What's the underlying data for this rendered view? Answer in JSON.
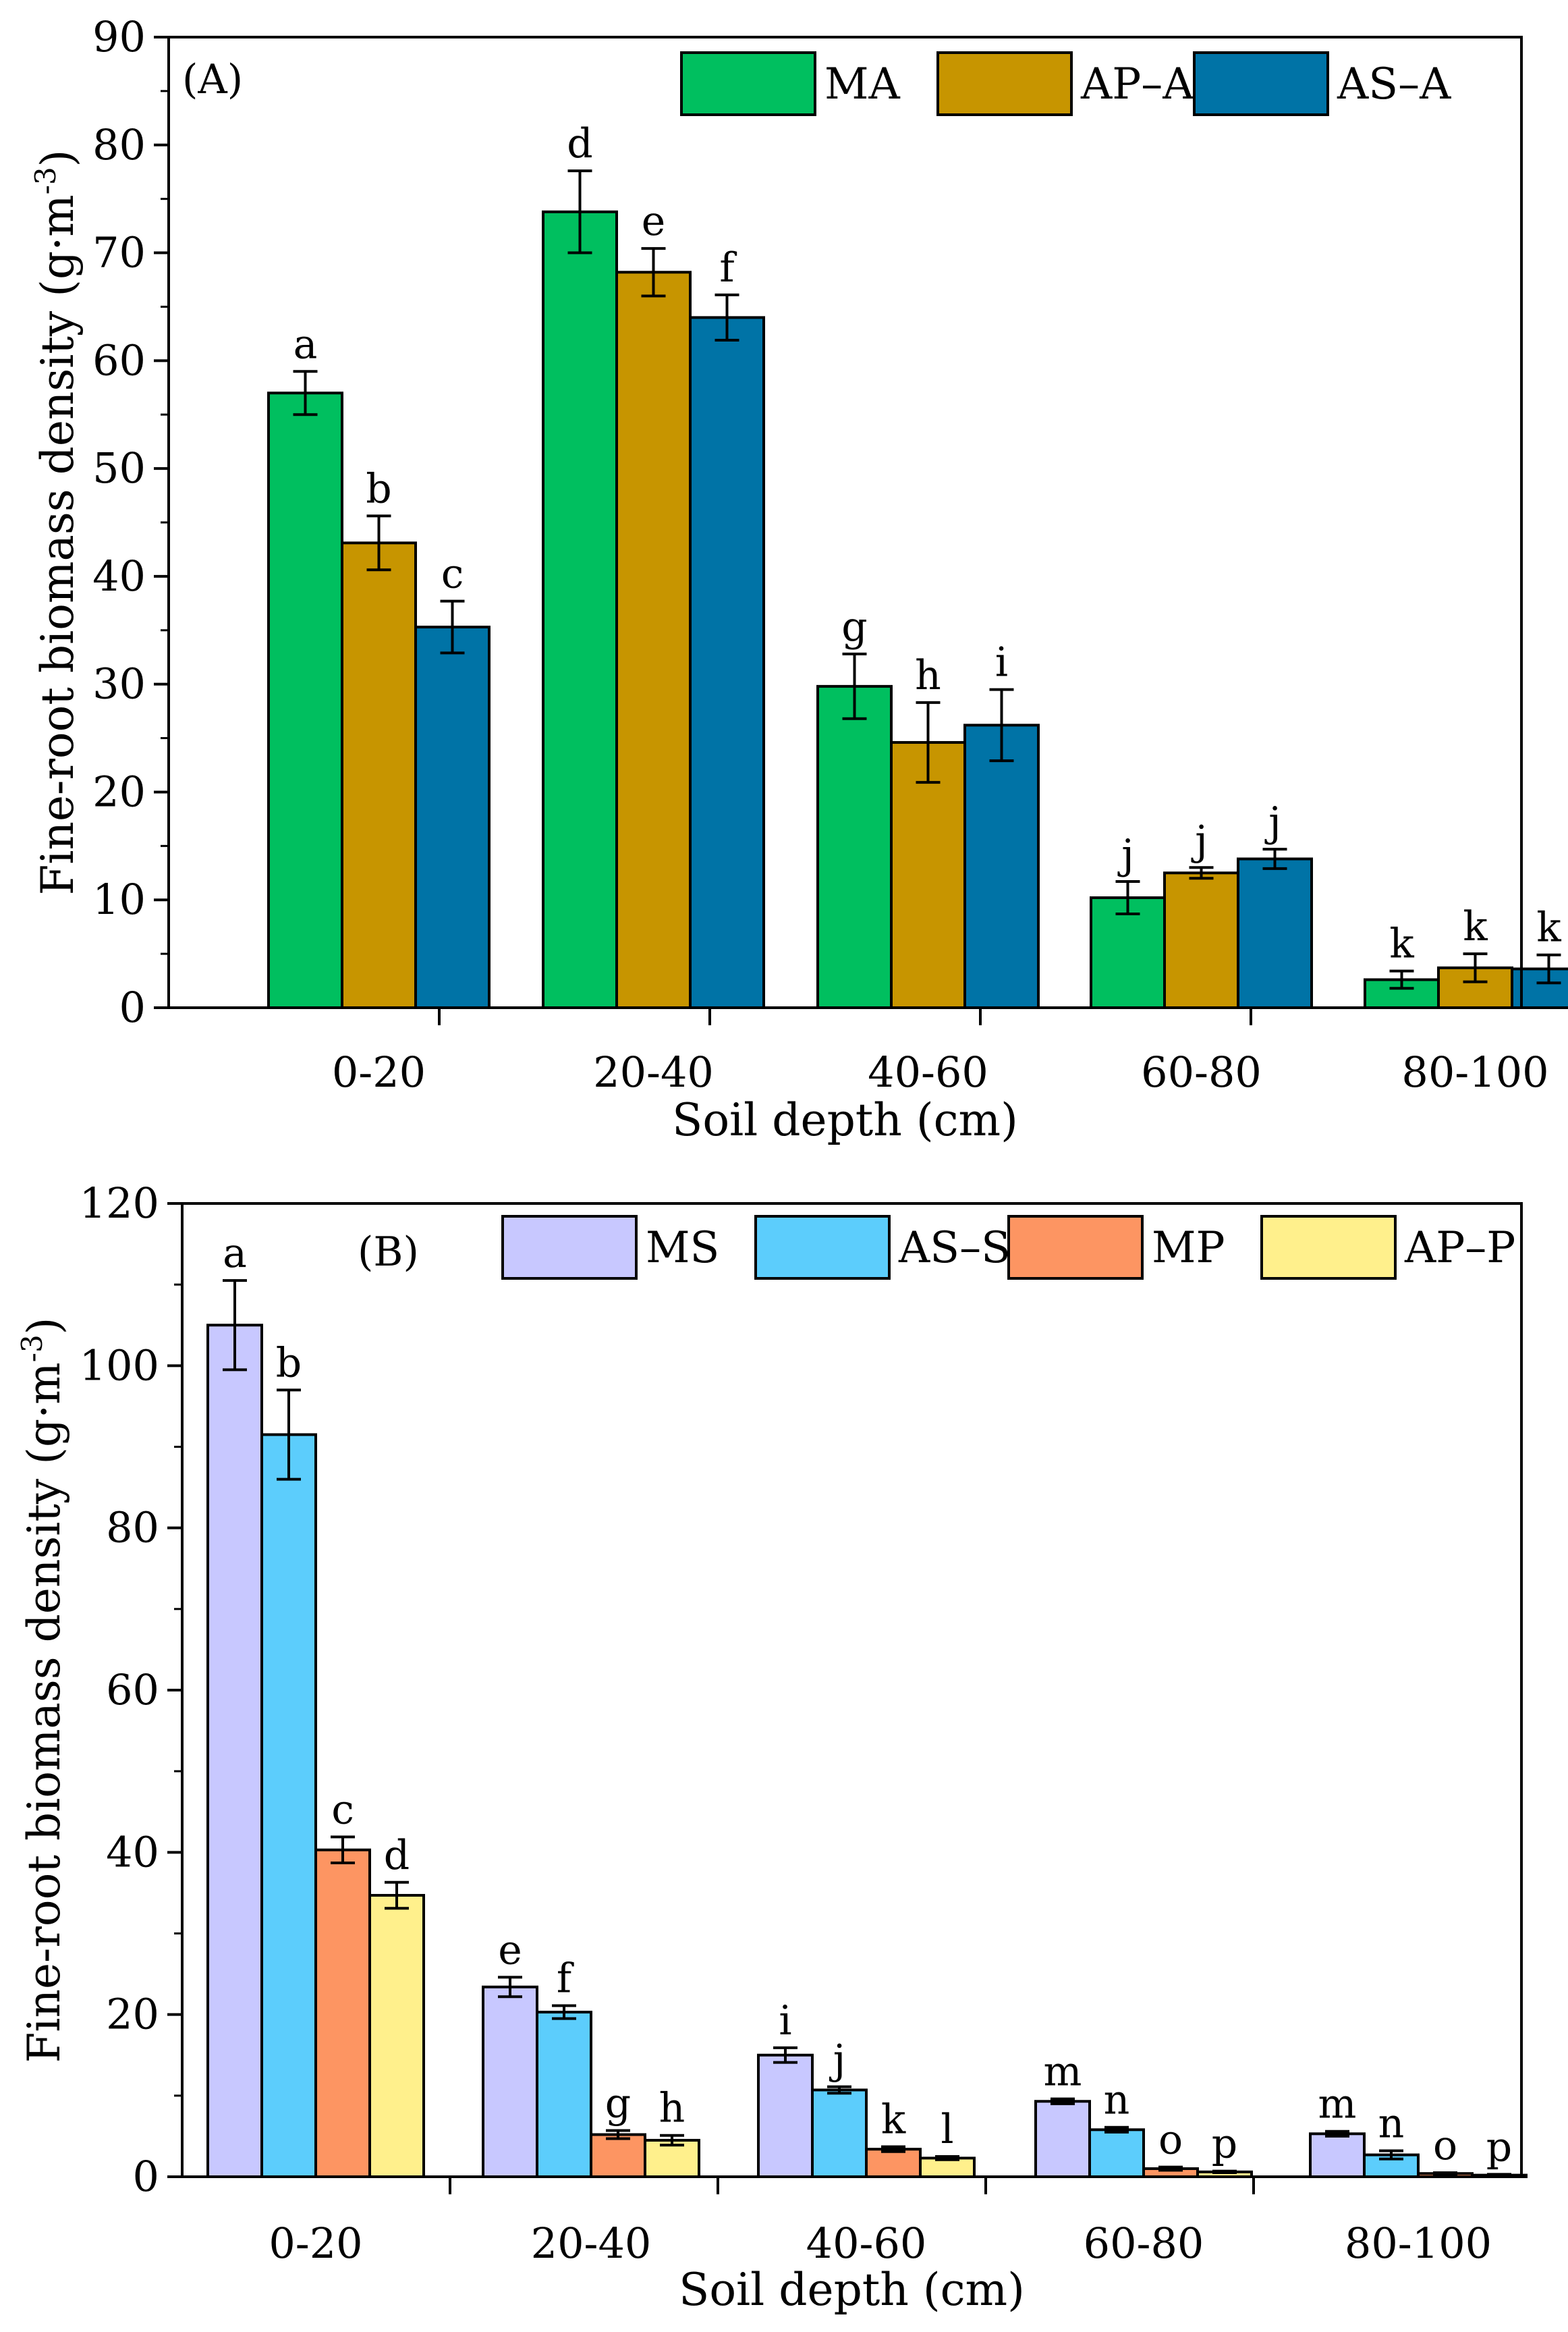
{
  "chart_data": [
    {
      "type": "bar",
      "panel_label": "(A)",
      "categories": [
        "0-20",
        "20-40",
        "40-60",
        "60-80",
        "80-100"
      ],
      "xlabel": "Soil depth (cm)",
      "ylabel": "Fine-root biomass density (g·m",
      "ylabel_superscript": "-3",
      "ylabel_close": ")",
      "ylim": [
        0,
        90
      ],
      "yticks": [
        "0",
        "10",
        "20",
        "30",
        "40",
        "50",
        "60",
        "70",
        "80",
        "90"
      ],
      "legend_position": "top-right",
      "series": [
        {
          "name": "MA",
          "color": "#00bf5f",
          "values": [
            57.0,
            73.8,
            29.8,
            10.2,
            2.6
          ],
          "errors": [
            2.0,
            3.8,
            3.0,
            1.5,
            0.8
          ],
          "letters": [
            "a",
            "d",
            "g",
            "j",
            "k"
          ]
        },
        {
          "name": "AP–A",
          "color": "#c79500",
          "values": [
            43.1,
            68.2,
            24.6,
            12.5,
            3.7
          ],
          "errors": [
            2.5,
            2.2,
            3.7,
            0.5,
            1.3
          ],
          "letters": [
            "b",
            "e",
            "h",
            "j",
            "k"
          ]
        },
        {
          "name": "AS–A",
          "color": "#0073a6",
          "values": [
            35.3,
            64.0,
            26.2,
            13.8,
            3.6
          ],
          "errors": [
            2.4,
            2.1,
            3.3,
            0.9,
            1.3
          ],
          "letters": [
            "c",
            "f",
            "i",
            "j",
            "k"
          ]
        }
      ]
    },
    {
      "type": "bar",
      "panel_label": "(B)",
      "categories": [
        "0-20",
        "20-40",
        "40-60",
        "60-80",
        "80-100"
      ],
      "xlabel": "Soil depth (cm)",
      "ylabel": "Fine-root biomass density (g·m",
      "ylabel_superscript": "-3",
      "ylabel_close": ")",
      "ylim": [
        0,
        120
      ],
      "yticks": [
        "0",
        "20",
        "40",
        "60",
        "80",
        "100",
        "120"
      ],
      "legend_position": "top-right",
      "series": [
        {
          "name": "MS",
          "color": "#c8c8ff",
          "values": [
            105.0,
            23.4,
            15.0,
            9.3,
            5.3
          ],
          "errors": [
            5.5,
            1.2,
            0.9,
            0.3,
            0.3
          ],
          "letters": [
            "a",
            "e",
            "i",
            "m",
            "m"
          ]
        },
        {
          "name": "AS–S",
          "color": "#5ccdfc",
          "values": [
            91.5,
            20.3,
            10.7,
            5.8,
            2.7
          ],
          "errors": [
            5.5,
            0.8,
            0.4,
            0.3,
            0.5
          ],
          "letters": [
            "b",
            "f",
            "j",
            "n",
            "n"
          ]
        },
        {
          "name": "MP",
          "color": "#fd9562",
          "values": [
            40.3,
            5.2,
            3.4,
            1.0,
            0.4
          ],
          "errors": [
            1.6,
            0.5,
            0.3,
            0.2,
            0.1
          ],
          "letters": [
            "c",
            "g",
            "k",
            "o",
            "o"
          ]
        },
        {
          "name": "AP–P",
          "color": "#fff08c",
          "values": [
            34.7,
            4.5,
            2.3,
            0.6,
            0.2
          ],
          "errors": [
            1.6,
            0.6,
            0.2,
            0.1,
            0.1
          ],
          "letters": [
            "d",
            "h",
            "l",
            "p",
            "p"
          ]
        }
      ]
    }
  ]
}
